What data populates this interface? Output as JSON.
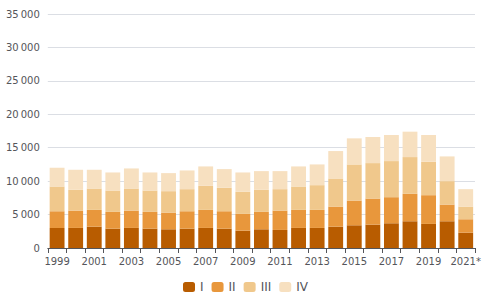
{
  "chart_data": {
    "type": "bar",
    "stacked": true,
    "categories": [
      "1999",
      null,
      "2001",
      null,
      "2003",
      null,
      "2005",
      null,
      "2007",
      null,
      "2009",
      null,
      "2011",
      null,
      "2013",
      null,
      "2015",
      null,
      "2017",
      null,
      "2019",
      null,
      "2021*"
    ],
    "series": [
      {
        "name": "I",
        "color": "#b85c00",
        "values": [
          3000,
          3000,
          3200,
          2900,
          3000,
          2900,
          2800,
          2900,
          3000,
          2900,
          2600,
          2800,
          2700,
          3000,
          3000,
          3200,
          3400,
          3500,
          3700,
          4000,
          3600,
          4000,
          2300
        ]
      },
      {
        "name": "II",
        "color": "#e8973c",
        "values": [
          2500,
          2600,
          2500,
          2500,
          2600,
          2500,
          2500,
          2600,
          2700,
          2600,
          2500,
          2600,
          2900,
          2700,
          2700,
          3000,
          3700,
          3900,
          3900,
          4100,
          4300,
          2500,
          2000
        ]
      },
      {
        "name": "III",
        "color": "#f0c88c",
        "values": [
          3700,
          3100,
          3200,
          3200,
          3300,
          3200,
          3200,
          3300,
          3600,
          3500,
          3300,
          3300,
          3200,
          3500,
          3700,
          4200,
          5400,
          5300,
          5400,
          5500,
          5000,
          3500,
          1900
        ]
      },
      {
        "name": "IV",
        "color": "#f7e0c0",
        "values": [
          2800,
          3000,
          2800,
          2700,
          3000,
          2700,
          2700,
          2800,
          2900,
          2800,
          2900,
          2800,
          2700,
          3000,
          3100,
          4100,
          3900,
          3900,
          3900,
          3800,
          4000,
          3700,
          2600
        ]
      }
    ],
    "ylim": [
      0,
      35000
    ],
    "yticks": [
      0,
      {
        "value": 5000,
        "label": "5 000"
      },
      {
        "value": 10000,
        "label": "10 000"
      },
      {
        "value": 15000,
        "label": "15 000"
      },
      {
        "value": 20000,
        "label": "20 000"
      },
      {
        "value": 25000,
        "label": "25 000"
      },
      {
        "value": 30000,
        "label": "30 000"
      },
      {
        "value": 35000,
        "label": "35 000"
      }
    ],
    "grid": true,
    "legend": "bottom"
  }
}
